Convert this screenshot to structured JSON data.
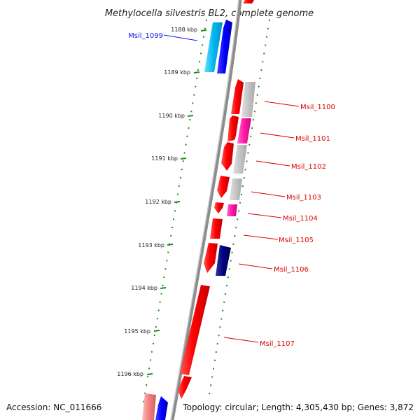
{
  "title": "Methylocella silvestris BL2, complete genome",
  "footer": {
    "accession": "Accession: NC_011666",
    "topology": "Topology: circular; Length: 4,305,430 bp; Genes: 3,872"
  },
  "ruler": [
    "1188 kbp",
    "1189 kbp",
    "1190 kbp",
    "1191 kbp",
    "1192 kbp",
    "1193 kbp",
    "1194 kbp",
    "1195 kbp",
    "1196 kbp"
  ],
  "genes": [
    {
      "label": "Msil_1099",
      "color": "#1010ee"
    },
    {
      "label": "Msil_1100",
      "color": "#dd0000"
    },
    {
      "label": "Msil_1101",
      "color": "#dd0000"
    },
    {
      "label": "Msil_1102",
      "color": "#dd0000"
    },
    {
      "label": "Msil_1103",
      "color": "#dd0000"
    },
    {
      "label": "Msil_1104",
      "color": "#dd0000"
    },
    {
      "label": "Msil_1105",
      "color": "#dd0000"
    },
    {
      "label": "Msil_1106",
      "color": "#dd0000"
    },
    {
      "label": "Msil_1107",
      "color": "#dd0000"
    }
  ]
}
